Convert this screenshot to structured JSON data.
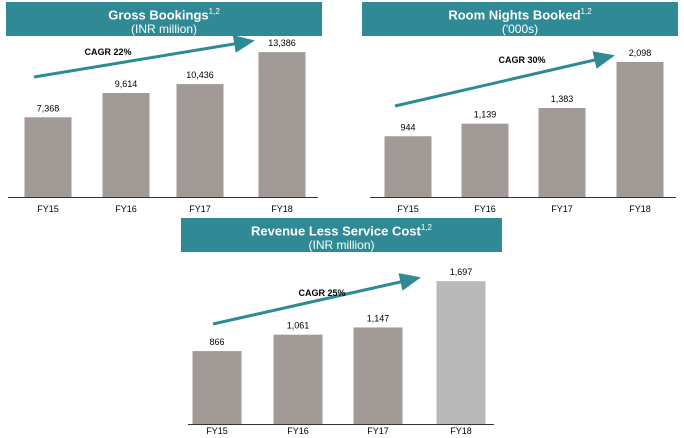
{
  "colors": {
    "header_bg": "#2f8a96",
    "bar": "#a29a97",
    "bar_highlight": "#b9b9b9",
    "arrow": "#2f8a96",
    "axis": "#333333"
  },
  "charts": [
    {
      "title": "Gross Bookings",
      "title_sup": "1,2",
      "subtitle": "(INR million)",
      "cagr": "CAGR 22%"
    },
    {
      "title": "Room Nights Booked",
      "title_sup": "1,2",
      "subtitle": "('000s)",
      "cagr": "CAGR 30%"
    },
    {
      "title": "Revenue Less Service Cost",
      "title_sup": "1,2",
      "subtitle": "(INR million)",
      "cagr": "CAGR 25%"
    }
  ],
  "chart_data": [
    {
      "type": "bar",
      "title": "Gross Bookings (INR million)",
      "categories": [
        "FY15",
        "FY16",
        "FY17",
        "FY18"
      ],
      "values": [
        7368,
        9614,
        10436,
        13386
      ],
      "labels": [
        "7,368",
        "9,614",
        "10,436",
        "13,386"
      ],
      "annotation": "CAGR 22%",
      "ylim": [
        0,
        14600
      ],
      "highlight": []
    },
    {
      "type": "bar",
      "title": "Room Nights Booked ('000s)",
      "categories": [
        "FY15",
        "FY16",
        "FY17",
        "FY18"
      ],
      "values": [
        944,
        1139,
        1383,
        2098
      ],
      "labels": [
        "944",
        "1,139",
        "1,383",
        "2,098"
      ],
      "annotation": "CAGR 30%",
      "ylim": [
        0,
        2440
      ],
      "highlight": []
    },
    {
      "type": "bar",
      "title": "Revenue Less Service Cost (INR million)",
      "categories": [
        "FY15",
        "FY16",
        "FY17",
        "FY18"
      ],
      "values": [
        866,
        1061,
        1147,
        1697
      ],
      "labels": [
        "866",
        "1,061",
        "1,147",
        "1,697"
      ],
      "annotation": "CAGR 25%",
      "ylim": [
        0,
        1877
      ],
      "highlight": [
        3
      ]
    }
  ]
}
